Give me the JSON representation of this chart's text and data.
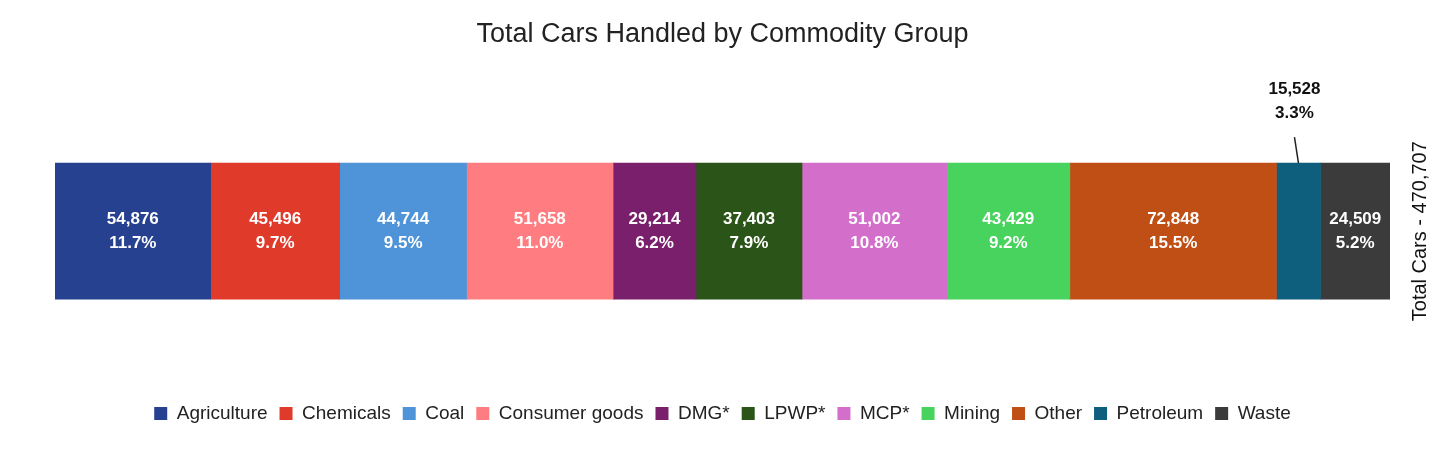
{
  "chart_data": {
    "type": "bar",
    "orientation": "horizontal",
    "stacked": true,
    "title": "Total Cars Handled by Commodity Group",
    "categories": [
      null
    ],
    "xlim": [
      0,
      470707
    ],
    "tick_labels": false,
    "legend": "bottom",
    "annotations": [
      "Total Cars - 470,707"
    ],
    "series": [
      {
        "name": "Agriculture",
        "color": "#264190",
        "values": [
          54876
        ],
        "value_labels": [
          "54,876\n11.7%"
        ]
      },
      {
        "name": "Chemicals",
        "color": "#e03a2a",
        "values": [
          45496
        ],
        "value_labels": [
          "45,496\n9.7%"
        ]
      },
      {
        "name": "Coal",
        "color": "#4f94d8",
        "values": [
          44744
        ],
        "value_labels": [
          "44,744\n9.5%"
        ]
      },
      {
        "name": "Consumer goods",
        "color": "#ff7c80",
        "values": [
          51658
        ],
        "value_labels": [
          "51,658\n11.0%"
        ]
      },
      {
        "name": "DMG*",
        "color": "#7a1f6b",
        "values": [
          29214
        ],
        "value_labels": [
          "29,214\n6.2%"
        ]
      },
      {
        "name": "LPWP*",
        "color": "#2a5418",
        "values": [
          37403
        ],
        "value_labels": [
          "37,403\n7.9%"
        ]
      },
      {
        "name": "MCP*",
        "color": "#d46ecb",
        "values": [
          51002
        ],
        "value_labels": [
          "51,002\n10.8%"
        ]
      },
      {
        "name": "Mining",
        "color": "#47d35d",
        "values": [
          43429
        ],
        "value_labels": [
          "43,429\n9.2%"
        ]
      },
      {
        "name": "Other",
        "color": "#c04f15",
        "values": [
          72848
        ],
        "value_labels": [
          "72,848\n15.5%"
        ]
      },
      {
        "name": "Petroleum",
        "color": "#0e5e7e",
        "values": [
          15528
        ],
        "value_labels": [
          "15,528\n3.3%"
        ]
      },
      {
        "name": "Waste",
        "color": "#3b3b3b",
        "values": [
          24509
        ],
        "value_labels": [
          "24,509\n5.2%"
        ]
      }
    ]
  }
}
